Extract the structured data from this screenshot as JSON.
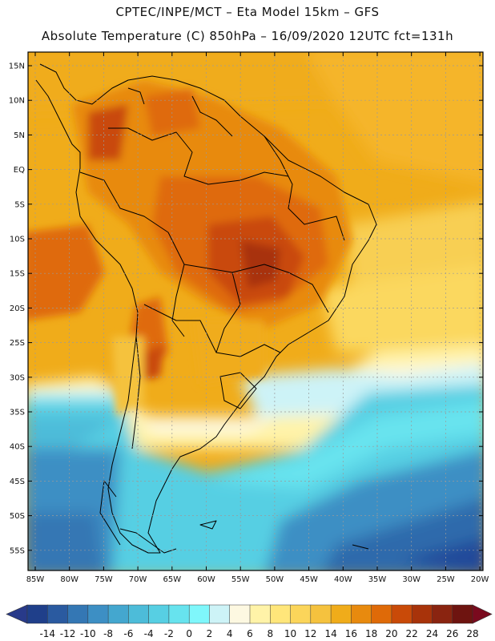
{
  "header": {
    "line1": "CPTEC/INPE/MCT –  Eta Model 15km – GFS",
    "line2": "Absolute Temperature (C) 850hPa – 16/09/2020 12UTC fct=131h"
  },
  "map": {
    "lat_labels": [
      "15N",
      "10N",
      "5N",
      "EQ",
      "5S",
      "10S",
      "15S",
      "20S",
      "25S",
      "30S",
      "35S",
      "40S",
      "45S",
      "50S",
      "55S"
    ],
    "lon_labels": [
      "85W",
      "80W",
      "75W",
      "70W",
      "65W",
      "60W",
      "55W",
      "50W",
      "45W",
      "40W",
      "35W",
      "30W",
      "25W",
      "20W"
    ]
  },
  "colorbar": {
    "labels": [
      "-14",
      "-12",
      "-10",
      "-8",
      "-6",
      "-4",
      "-2",
      "0",
      "2",
      "4",
      "6",
      "8",
      "10",
      "12",
      "14",
      "16",
      "18",
      "20",
      "22",
      "24",
      "26",
      "28"
    ],
    "colors": [
      "#1f3f8a",
      "#2a5aa0",
      "#3477b4",
      "#3d8fc4",
      "#44a7cf",
      "#4dbcd9",
      "#57cfe3",
      "#67e3ee",
      "#7ff7fb",
      "#cdf3f7",
      "#fdf8e1",
      "#fff3a8",
      "#ffe67a",
      "#fbd55a",
      "#f5c23e",
      "#f0ac1a",
      "#e88a0e",
      "#df6a08",
      "#c94a08",
      "#a8330a",
      "#8a2410",
      "#6e1410"
    ],
    "low_color": "#283a8a",
    "high_color": "#7a0a1e"
  }
}
